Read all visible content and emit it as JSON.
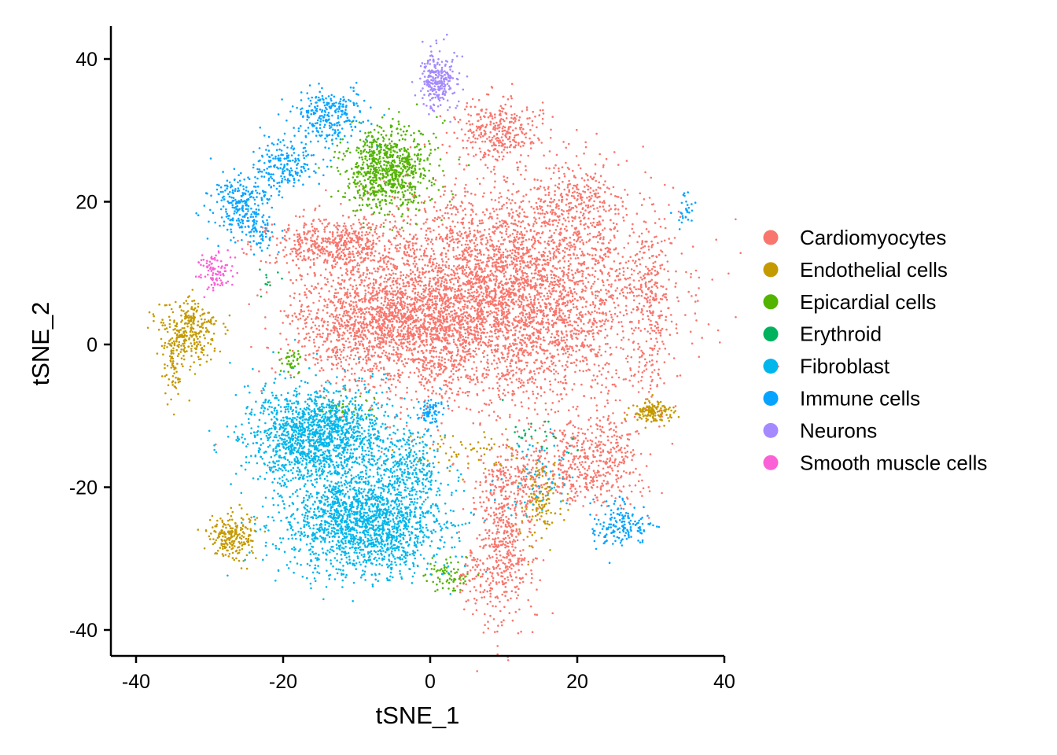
{
  "chart_data": {
    "type": "scatter",
    "title": "",
    "xlabel": "tSNE_1",
    "ylabel": "tSNE_2",
    "xlim": [
      -43,
      40
    ],
    "ylim": [
      -43,
      45
    ],
    "x_ticks": [
      -40,
      -20,
      0,
      20,
      40
    ],
    "y_ticks": [
      -40,
      -20,
      0,
      20,
      40
    ],
    "x_tick_labels": [
      "-40",
      "-20",
      "0",
      "20",
      "40"
    ],
    "y_tick_labels": [
      "-40",
      "-20",
      "0",
      "20",
      "40"
    ],
    "grid": false,
    "legend_position": "right",
    "series": [
      {
        "name": "Cardiomyocytes",
        "color": "#F8766D",
        "clusters": [
          {
            "cx": 10,
            "cy": 7,
            "sx": 10,
            "sy": 7.5,
            "n": 4200
          },
          {
            "cx": -6,
            "cy": 3,
            "sx": 6.5,
            "sy": 4,
            "n": 1500
          },
          {
            "cx": -13,
            "cy": 14,
            "sx": 4.5,
            "sy": 1.7,
            "n": 500
          },
          {
            "cx": 9,
            "cy": 30,
            "sx": 3,
            "sy": 2,
            "n": 300
          },
          {
            "cx": 30,
            "cy": 5,
            "sx": 1.2,
            "sy": 6,
            "n": 220
          },
          {
            "cx": 22,
            "cy": -16,
            "sx": 3.5,
            "sy": 3,
            "n": 450
          },
          {
            "cx": 10,
            "cy": -28,
            "sx": 2,
            "sy": 5.5,
            "n": 450
          },
          {
            "cx": 12,
            "cy": -19,
            "sx": 3,
            "sy": 2.5,
            "n": 200
          },
          {
            "cx": 6,
            "cy": -33,
            "sx": 1.2,
            "sy": 2,
            "n": 60
          },
          {
            "cx": 20,
            "cy": 20,
            "sx": 3,
            "sy": 3,
            "n": 250
          }
        ]
      },
      {
        "name": "Endothelial cells",
        "color": "#C49A00",
        "clusters": [
          {
            "cx": -33,
            "cy": 2,
            "sx": 2.2,
            "sy": 2.2,
            "n": 300
          },
          {
            "cx": -35,
            "cy": -4,
            "sx": 0.6,
            "sy": 2.5,
            "n": 60
          },
          {
            "cx": -27,
            "cy": -27,
            "sx": 1.6,
            "sy": 1.6,
            "n": 220
          },
          {
            "cx": 30,
            "cy": -9.5,
            "sx": 1.3,
            "sy": 0.8,
            "n": 140
          },
          {
            "cx": 15,
            "cy": -22,
            "sx": 1.5,
            "sy": 3,
            "n": 120
          },
          {
            "cx": 5,
            "cy": -15,
            "sx": 4,
            "sy": 1.5,
            "n": 60
          }
        ]
      },
      {
        "name": "Epicardial cells",
        "color": "#53B400",
        "clusters": [
          {
            "cx": -6,
            "cy": 24.5,
            "sx": 3,
            "sy": 3,
            "n": 800
          },
          {
            "cx": 2.5,
            "cy": -32.5,
            "sx": 1.5,
            "sy": 1.3,
            "n": 70
          },
          {
            "cx": -19,
            "cy": -2.5,
            "sx": 0.7,
            "sy": 0.8,
            "n": 40
          },
          {
            "cx": -11,
            "cy": -9,
            "sx": 2.2,
            "sy": 1.2,
            "n": 40
          }
        ]
      },
      {
        "name": "Erythroid",
        "color": "#00B25D",
        "clusters": [
          {
            "cx": 14,
            "cy": -13,
            "sx": 2,
            "sy": 1.5,
            "n": 25
          },
          {
            "cx": -22,
            "cy": 9,
            "sx": 1,
            "sy": 1,
            "n": 10
          }
        ]
      },
      {
        "name": "Fibroblast",
        "color": "#00B6EB",
        "clusters": [
          {
            "cx": -15,
            "cy": -13,
            "sx": 5,
            "sy": 3.5,
            "n": 1600
          },
          {
            "cx": -9,
            "cy": -25,
            "sx": 5.5,
            "sy": 3.5,
            "n": 1700
          },
          {
            "cx": -3,
            "cy": -17,
            "sx": 2,
            "sy": 2.5,
            "n": 200
          },
          {
            "cx": 15,
            "cy": -18,
            "sx": 2,
            "sy": 3,
            "n": 60
          }
        ]
      },
      {
        "name": "Immune cells",
        "color": "#06A4FF",
        "clusters": [
          {
            "cx": -14,
            "cy": 32,
            "sx": 2.5,
            "sy": 2,
            "n": 260
          },
          {
            "cx": -20,
            "cy": 25,
            "sx": 2.2,
            "sy": 2,
            "n": 200
          },
          {
            "cx": -26,
            "cy": 20,
            "sx": 2,
            "sy": 2,
            "n": 220
          },
          {
            "cx": -24,
            "cy": 16,
            "sx": 1.5,
            "sy": 1.3,
            "n": 80
          },
          {
            "cx": 0,
            "cy": -9.5,
            "sx": 0.9,
            "sy": 1,
            "n": 70
          },
          {
            "cx": 26,
            "cy": -25.5,
            "sx": 2,
            "sy": 1.6,
            "n": 160
          },
          {
            "cx": 34.5,
            "cy": 18.5,
            "sx": 0.6,
            "sy": 1.2,
            "n": 30
          }
        ]
      },
      {
        "name": "Neurons",
        "color": "#A58AFF",
        "clusters": [
          {
            "cx": 1,
            "cy": 37,
            "sx": 1.2,
            "sy": 2,
            "n": 260
          }
        ]
      },
      {
        "name": "Smooth muscle cells",
        "color": "#FB61D7",
        "clusters": [
          {
            "cx": -29,
            "cy": 10,
            "sx": 1.2,
            "sy": 1.5,
            "n": 100
          }
        ]
      }
    ]
  }
}
